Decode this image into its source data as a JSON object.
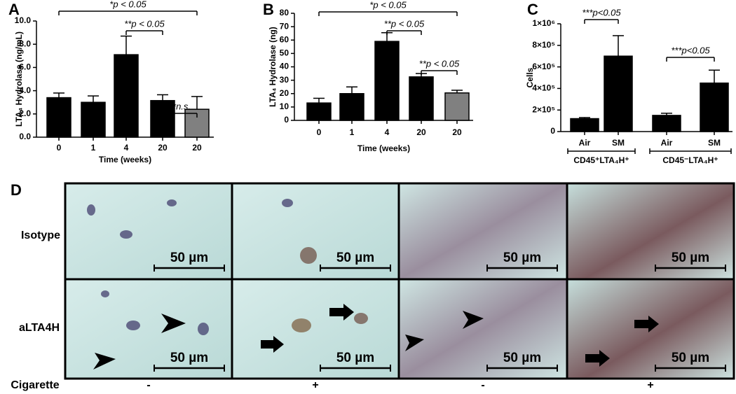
{
  "chart_data": [
    {
      "type": "bar",
      "panel": "A",
      "y_label": "LTA₄ Hydrolase (ng/mL)",
      "x_label": "Time (weeks)",
      "categories": [
        "0",
        "1",
        "4",
        "20",
        "20"
      ],
      "values": [
        3.4,
        3.0,
        7.1,
        3.15,
        2.4
      ],
      "errors": [
        0.4,
        0.55,
        1.6,
        0.5,
        1.1
      ],
      "colors": [
        "#000000",
        "#000000",
        "#000000",
        "#000000",
        "#808080"
      ],
      "ylim": [
        0,
        10
      ],
      "yticks": [
        {
          "value": 0,
          "label": "0.0"
        },
        {
          "value": 2,
          "label": "2.0"
        },
        {
          "value": 4,
          "label": "4.0"
        },
        {
          "value": 6,
          "label": "6.0"
        },
        {
          "value": 8,
          "label": "8.0"
        },
        {
          "value": 10,
          "label": "10.0"
        }
      ],
      "annotations": [
        "*p < 0.05",
        "**p < 0.05",
        "**n.s."
      ]
    },
    {
      "type": "bar",
      "panel": "B",
      "y_label": "LTA₄ Hydrolase (ng)",
      "x_label": "Time (weeks)",
      "categories": [
        "0",
        "1",
        "4",
        "20",
        "20"
      ],
      "values": [
        13,
        20,
        59,
        32.5,
        20.5
      ],
      "errors": [
        3.5,
        5,
        6.5,
        2.5,
        2
      ],
      "colors": [
        "#000000",
        "#000000",
        "#000000",
        "#000000",
        "#808080"
      ],
      "ylim": [
        0,
        80
      ],
      "yticks": [
        0,
        10,
        20,
        30,
        40,
        50,
        60,
        70,
        80
      ],
      "annotations": [
        "*p < 0.05",
        "**p < 0.05",
        "**p < 0.05"
      ]
    },
    {
      "type": "bar",
      "panel": "C",
      "y_label": "Cells",
      "categories": [
        "Air",
        "SM",
        "Air",
        "SM"
      ],
      "groups": [
        "CD45⁺LTA₄H⁺",
        "CD45⁻LTA₄H⁺"
      ],
      "values": [
        120000,
        700000,
        150000,
        450000
      ],
      "errors": [
        10000,
        190000,
        20000,
        120000
      ],
      "colors": [
        "#000000",
        "#000000",
        "#000000",
        "#000000"
      ],
      "ylim": [
        0,
        1000000
      ],
      "yticks": [
        0,
        {
          "value": 200000,
          "label": "2×10⁵"
        },
        {
          "value": 400000,
          "label": "4×10⁵"
        },
        {
          "value": 600000,
          "label": "6×10⁵"
        },
        {
          "value": 800000,
          "label": "8×10⁵"
        },
        {
          "value": 1000000,
          "label": "1×10⁶"
        }
      ],
      "annotations": [
        "***p<0.05",
        "***p<0.05"
      ]
    }
  ],
  "panel_d": {
    "label": "D",
    "rows": [
      "Isotype",
      "aLTA4H"
    ],
    "factor": "Cigarette",
    "cigarette": [
      "-",
      "+",
      "-",
      "+"
    ],
    "scale_bar": "50 µm"
  }
}
